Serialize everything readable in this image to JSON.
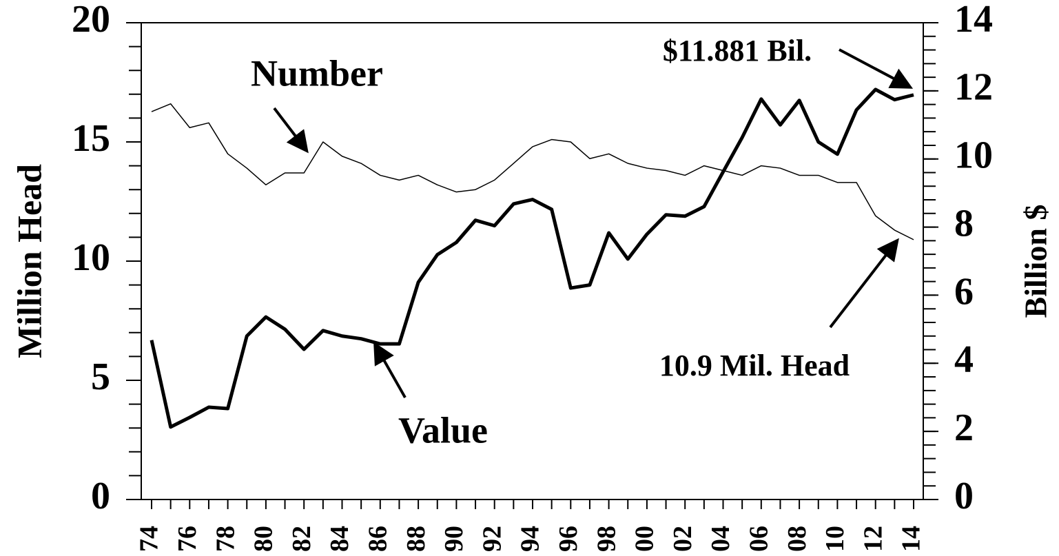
{
  "chart_data": {
    "type": "line",
    "categories": [
      "74",
      null,
      "76",
      null,
      "78",
      null,
      "80",
      null,
      "82",
      null,
      "84",
      null,
      "86",
      null,
      "88",
      null,
      "90",
      null,
      "92",
      null,
      "94",
      null,
      "96",
      null,
      "98",
      null,
      "00",
      null,
      "02",
      null,
      "04",
      null,
      "06",
      null,
      "08",
      null,
      "10",
      null,
      "12",
      null,
      "14"
    ],
    "series": [
      {
        "name": "Number",
        "color": "#000000",
        "axis": "y",
        "values": [
          16.27,
          16.6,
          15.6,
          15.8,
          14.5,
          13.9,
          13.2,
          13.7,
          13.7,
          15.0,
          14.4,
          14.1,
          13.6,
          13.4,
          13.6,
          13.2,
          12.9,
          13.0,
          13.4,
          14.1,
          14.8,
          15.1,
          15.0,
          14.3,
          14.5,
          14.1,
          13.9,
          13.8,
          13.6,
          14.0,
          13.8,
          13.6,
          14.0,
          13.9,
          13.6,
          13.6,
          13.3,
          13.3,
          11.9,
          11.3,
          10.9
        ]
      },
      {
        "name": "Value",
        "color": "#000000",
        "axis": "y2",
        "values": [
          4.68,
          2.13,
          2.41,
          2.71,
          2.67,
          4.8,
          5.36,
          5.0,
          4.41,
          4.96,
          4.8,
          4.72,
          4.57,
          4.57,
          6.38,
          7.19,
          7.55,
          8.2,
          8.04,
          8.68,
          8.81,
          8.52,
          6.21,
          6.3,
          7.83,
          7.06,
          7.79,
          8.36,
          8.32,
          8.6,
          9.62,
          10.63,
          11.76,
          11.0,
          11.72,
          10.5,
          10.14,
          11.44,
          12.04,
          11.74,
          11.881
        ]
      }
    ],
    "ylabel": "Million Head",
    "y2label": "Billion $",
    "ylim": [
      0,
      20
    ],
    "yticks": [
      0,
      5,
      10,
      15,
      20
    ],
    "y_minor_step": 1,
    "y2lim": [
      0,
      14
    ],
    "y2ticks": [
      0,
      2,
      4,
      6,
      8,
      10,
      12,
      14
    ],
    "y2_minor_step": 0.4,
    "annotations": [
      "$11.881 Bil.",
      "10.9 Mil. Head"
    ]
  }
}
